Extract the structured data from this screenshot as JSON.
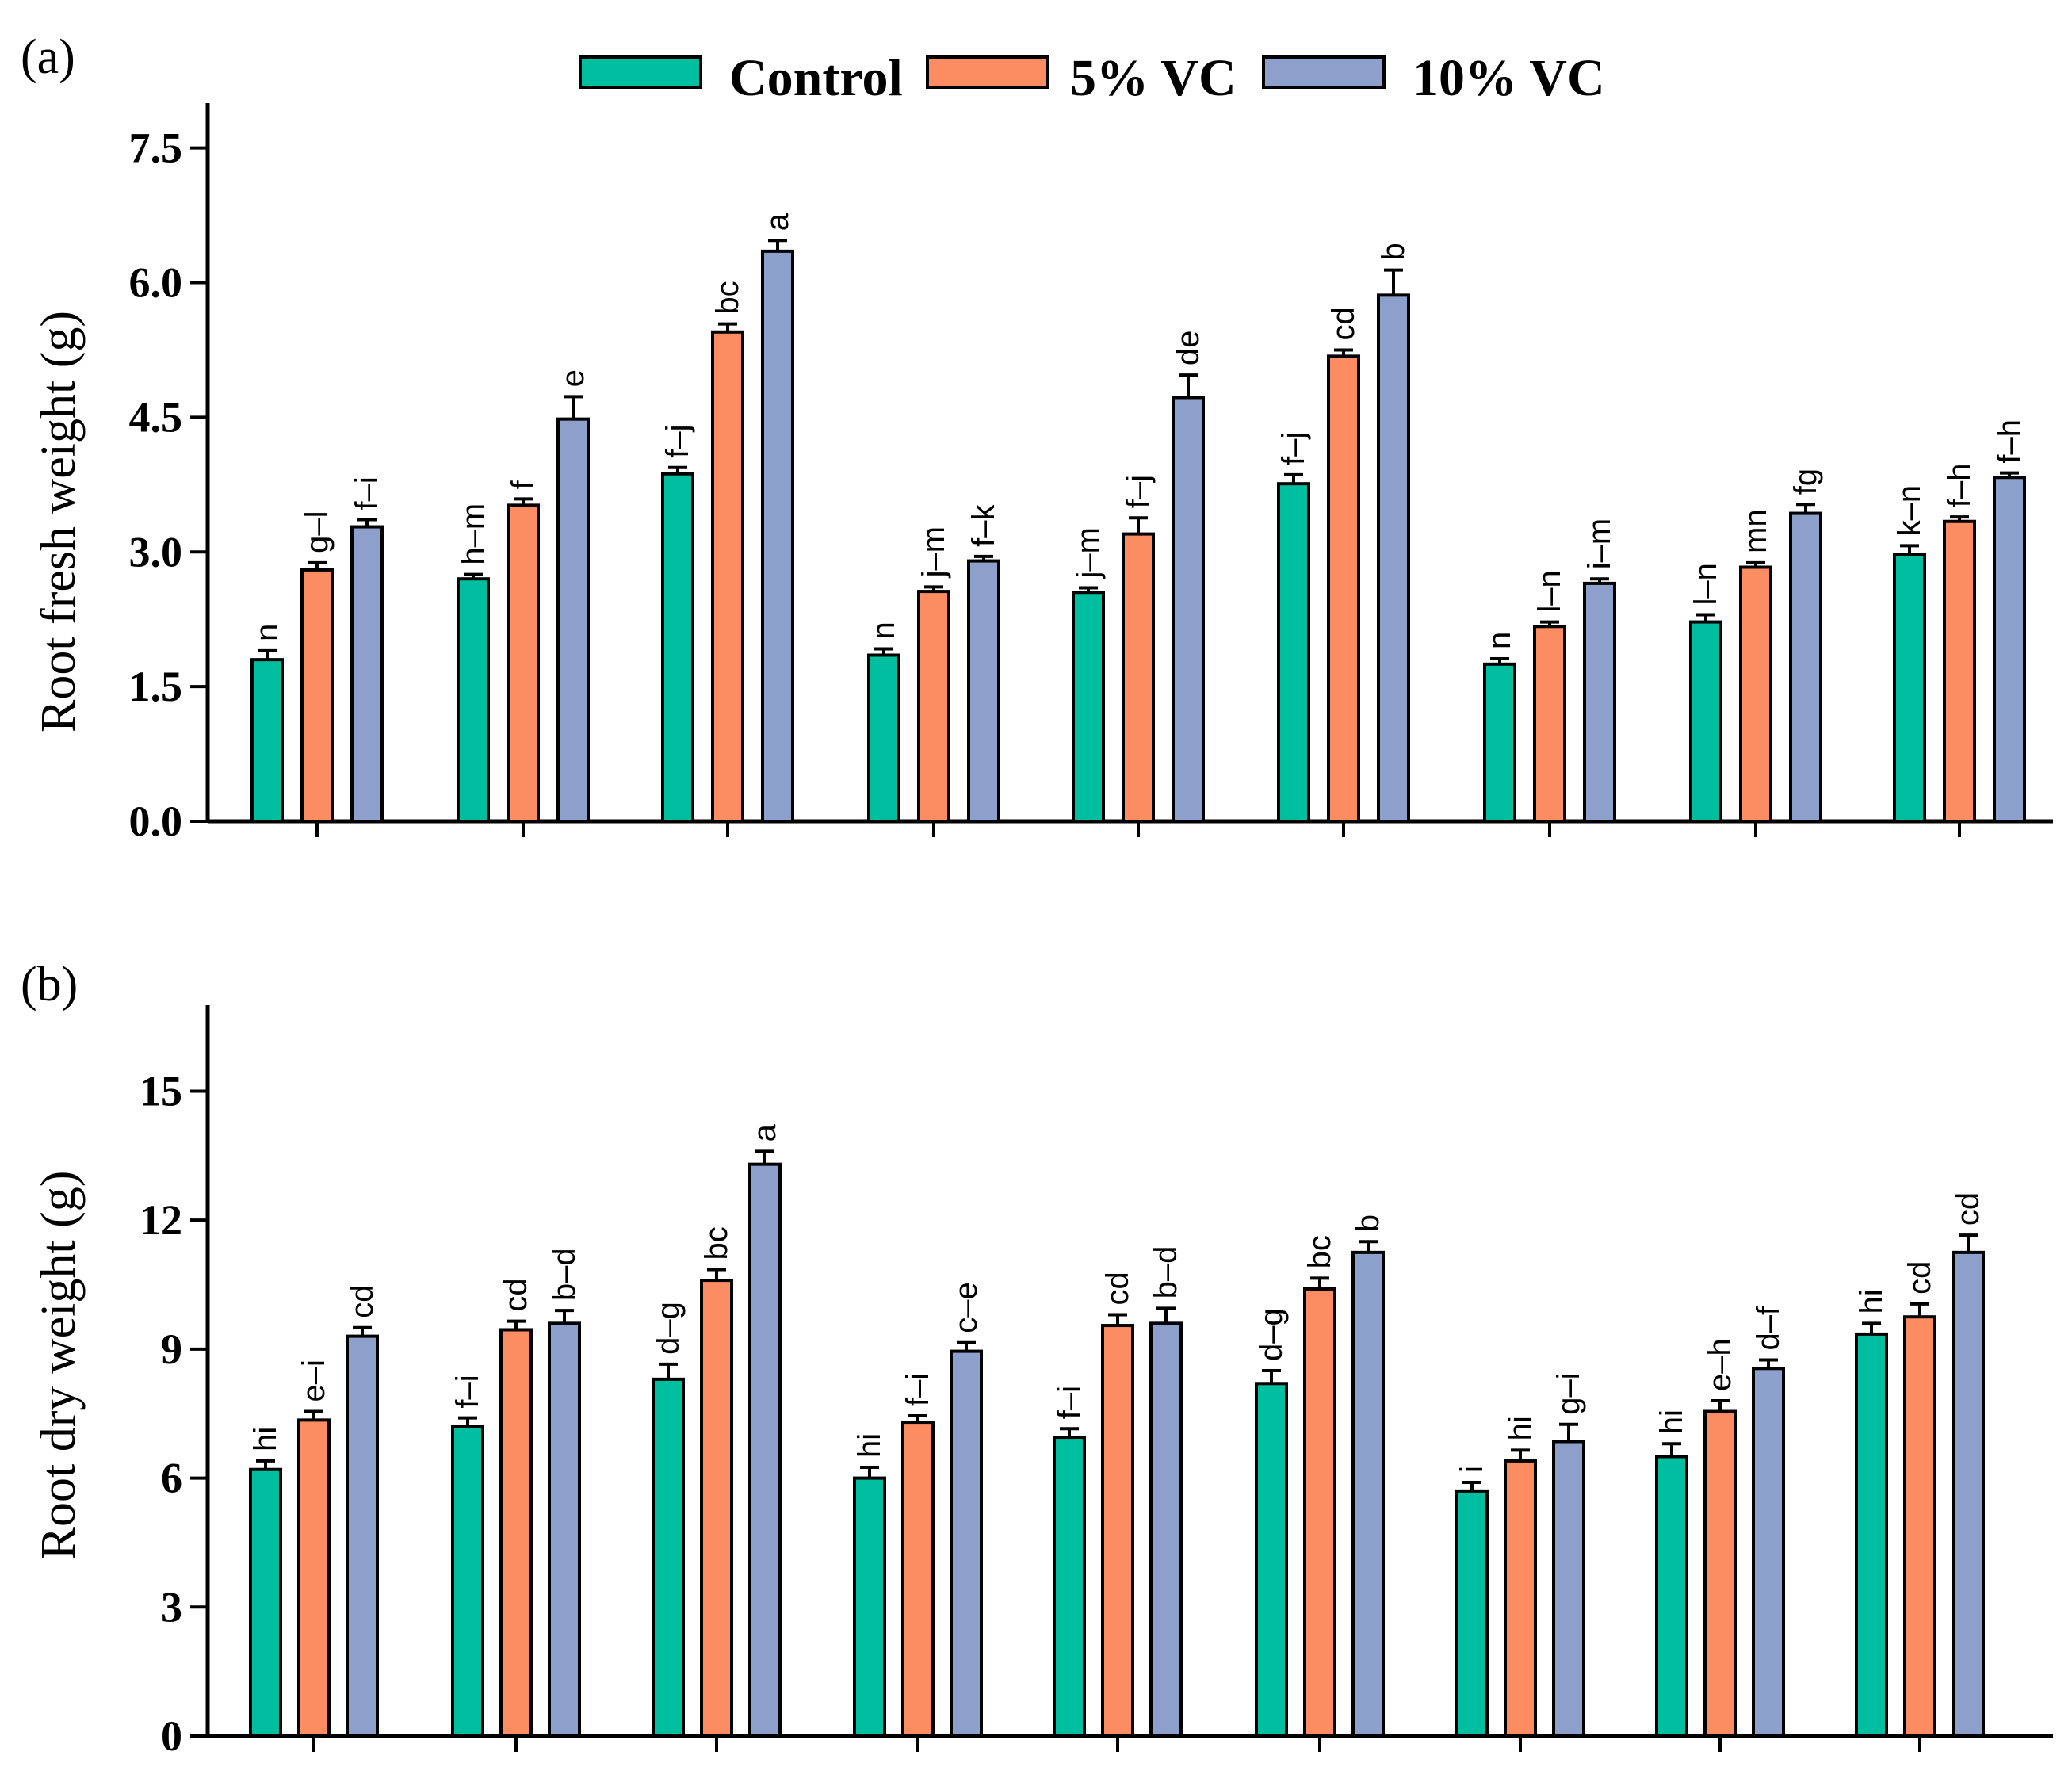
{
  "legend": {
    "series": [
      {
        "name": "Control",
        "color": "#00BFA0"
      },
      {
        "name": "5% VC",
        "color": "#FC8D62"
      },
      {
        "name": "10% VC",
        "color": "#8DA0CB"
      }
    ]
  },
  "chart_data": [
    {
      "panel": "(a)",
      "type": "bar",
      "ylabel": "Root fresh weight (g)",
      "ylim": [
        0,
        8.0
      ],
      "yticks": [
        "0.0",
        "1.5",
        "3.0",
        "4.5",
        "6.0",
        "7.5"
      ],
      "categories": [
        "",
        "",
        "",
        "",
        "",
        "",
        "",
        "",
        ""
      ],
      "series": [
        {
          "name": "Control",
          "values": [
            1.8,
            2.7,
            3.87,
            1.85,
            2.55,
            3.76,
            1.75,
            2.22,
            2.97
          ],
          "errors": [
            0.1,
            0.05,
            0.07,
            0.07,
            0.05,
            0.1,
            0.06,
            0.08,
            0.1
          ],
          "letters": [
            "n",
            "h–m",
            "f–j",
            "n",
            "j–m",
            "f–j",
            "n",
            "l–n",
            "k–n"
          ]
        },
        {
          "name": "5% VC",
          "values": [
            2.8,
            3.52,
            5.45,
            2.56,
            3.2,
            5.18,
            2.17,
            2.83,
            3.34
          ],
          "errors": [
            0.08,
            0.07,
            0.09,
            0.05,
            0.18,
            0.07,
            0.05,
            0.05,
            0.05
          ],
          "letters": [
            "g–l",
            "f",
            "bc",
            "j–m",
            "f–j",
            "cd",
            "l–n",
            "mn",
            "f–h"
          ]
        },
        {
          "name": "10% VC",
          "values": [
            3.28,
            4.48,
            6.35,
            2.9,
            4.72,
            5.86,
            2.65,
            3.43,
            3.83
          ],
          "errors": [
            0.08,
            0.25,
            0.12,
            0.05,
            0.25,
            0.28,
            0.05,
            0.1,
            0.05
          ],
          "letters": [
            "f–i",
            "e",
            "a",
            "f–k",
            "de",
            "b",
            "i–m",
            "fg",
            "f–h"
          ]
        }
      ]
    },
    {
      "panel": "(b)",
      "type": "bar",
      "ylabel": "Root dry weight (g)",
      "ylim": [
        0,
        17
      ],
      "yticks": [
        "0",
        "3",
        "6",
        "9",
        "12",
        "15"
      ],
      "categories": [
        "",
        "",
        "",
        "",
        "",
        "",
        "",
        "",
        ""
      ],
      "series": [
        {
          "name": "Control",
          "values": [
            6.2,
            7.2,
            8.3,
            6.0,
            6.95,
            8.2,
            5.7,
            6.5,
            9.35
          ],
          "errors": [
            0.2,
            0.2,
            0.35,
            0.25,
            0.2,
            0.3,
            0.2,
            0.3,
            0.25
          ],
          "letters": [
            "hi",
            "f–i",
            "d–g",
            "hi",
            "f–i",
            "d–g",
            "i",
            "hi",
            "hi"
          ]
        },
        {
          "name": "5% VC",
          "values": [
            7.35,
            9.45,
            10.6,
            7.3,
            9.55,
            10.4,
            6.4,
            7.55,
            9.75
          ],
          "errors": [
            0.2,
            0.2,
            0.25,
            0.15,
            0.25,
            0.25,
            0.25,
            0.25,
            0.3
          ],
          "letters": [
            "e–i",
            "cd",
            "bc",
            "f–i",
            "cd",
            "bc",
            "hi",
            "e–h",
            "cd"
          ]
        },
        {
          "name": "10% VC",
          "values": [
            9.3,
            9.6,
            13.3,
            8.95,
            9.6,
            11.25,
            6.85,
            8.55,
            11.25
          ],
          "errors": [
            0.2,
            0.3,
            0.3,
            0.2,
            0.35,
            0.25,
            0.4,
            0.2,
            0.4
          ],
          "letters": [
            "cd",
            "b–d",
            "a",
            "c–e",
            "b–d",
            "b",
            "g–i",
            "d–f",
            "cd"
          ]
        }
      ]
    }
  ]
}
